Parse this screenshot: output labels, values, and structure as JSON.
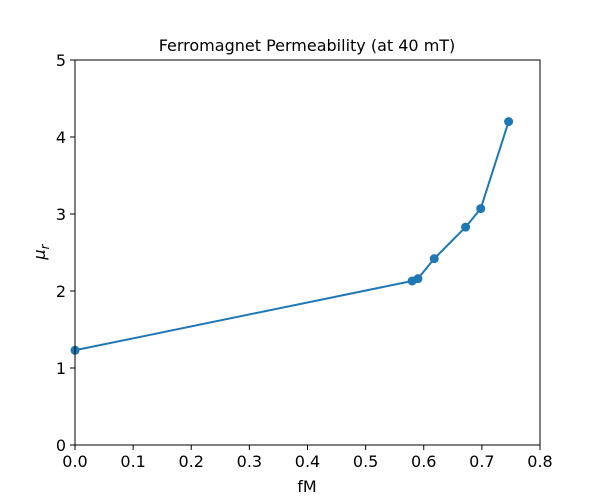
{
  "chart_data": {
    "type": "line",
    "title": "Ferromagnet Permeability (at 40 mT)",
    "xlabel": "fM",
    "ylabel_symbol": "μ",
    "ylabel_subscript": "r",
    "xlim": [
      0,
      0.8
    ],
    "ylim": [
      0,
      5
    ],
    "xticks": [
      "0.0",
      "0.1",
      "0.2",
      "0.3",
      "0.4",
      "0.5",
      "0.6",
      "0.7",
      "0.8"
    ],
    "yticks": [
      "0",
      "1",
      "2",
      "3",
      "4",
      "5"
    ],
    "grid": false,
    "series": [
      {
        "color": "#1f77b4",
        "marker": "circle",
        "x": [
          0.0,
          0.58,
          0.59,
          0.618,
          0.672,
          0.698,
          0.746
        ],
        "y": [
          1.23,
          2.13,
          2.16,
          2.42,
          2.83,
          3.07,
          4.2
        ]
      }
    ]
  }
}
